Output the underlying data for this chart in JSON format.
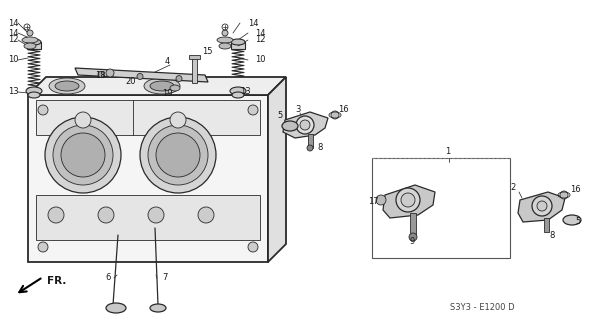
{
  "bg_color": "#ffffff",
  "line_color": "#2a2a2a",
  "text_color": "#1a1a1a",
  "diagram_code": "S3Y3 - E1200 D",
  "fr_label": "FR.",
  "figsize": [
    5.99,
    3.2
  ],
  "dpi": 100,
  "lw_main": 0.9,
  "lw_thin": 0.6,
  "lw_thick": 1.3,
  "fs_label": 6.0,
  "fs_code": 5.5
}
